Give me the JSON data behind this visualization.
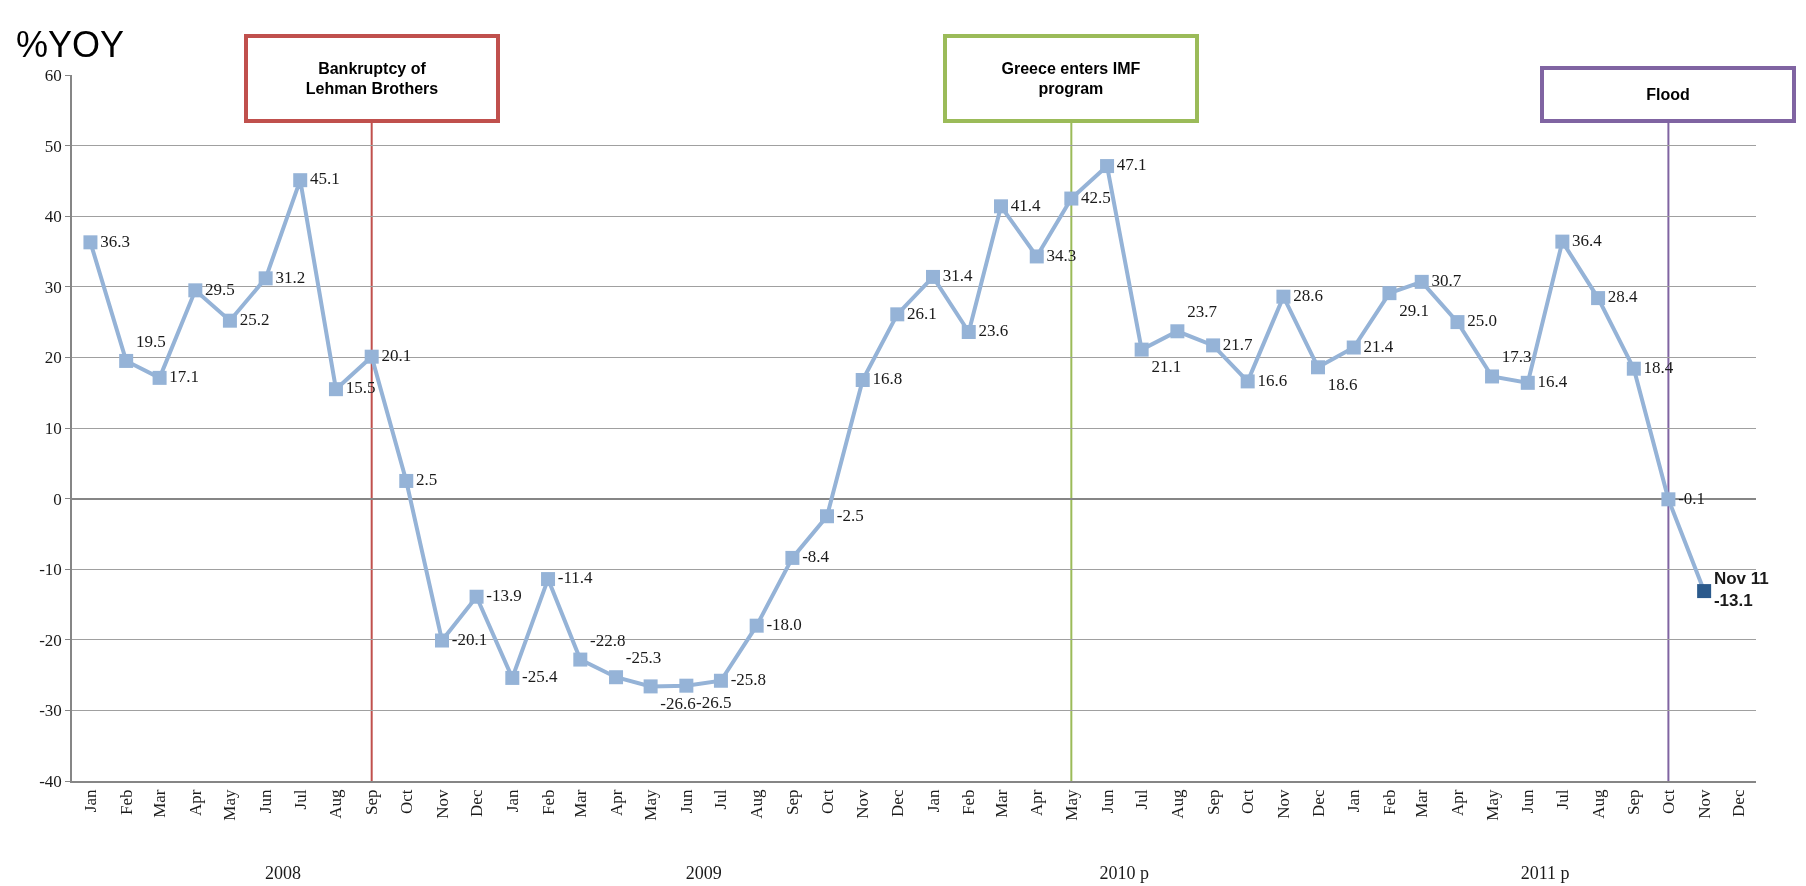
{
  "chart_data": {
    "type": "line",
    "ylabel": "%YOY",
    "x": [
      "2008-01",
      "2008-02",
      "2008-03",
      "2008-04",
      "2008-05",
      "2008-06",
      "2008-07",
      "2008-08",
      "2008-09",
      "2008-10",
      "2008-11",
      "2008-12",
      "2009-01",
      "2009-02",
      "2009-03",
      "2009-04",
      "2009-05",
      "2009-06",
      "2009-07",
      "2009-08",
      "2009-09",
      "2009-10",
      "2009-11",
      "2009-12",
      "2010-01",
      "2010-02",
      "2010-03",
      "2010-04",
      "2010-05",
      "2010-06",
      "2010-07",
      "2010-08",
      "2010-09",
      "2010-10",
      "2010-11",
      "2010-12",
      "2011-01",
      "2011-02",
      "2011-03",
      "2011-04",
      "2011-05",
      "2011-06",
      "2011-07",
      "2011-08",
      "2011-09",
      "2011-10",
      "2011-11"
    ],
    "series": [
      {
        "color": "#95b3d7",
        "colors": [
          "#95b3d7",
          "#95b3d7",
          "#95b3d7",
          "#95b3d7",
          "#95b3d7",
          "#95b3d7",
          "#95b3d7",
          "#95b3d7",
          "#95b3d7",
          "#95b3d7",
          "#95b3d7",
          "#95b3d7",
          "#95b3d7",
          "#95b3d7",
          "#95b3d7",
          "#95b3d7",
          "#95b3d7",
          "#95b3d7",
          "#95b3d7",
          "#95b3d7",
          "#95b3d7",
          "#95b3d7",
          "#95b3d7",
          "#95b3d7",
          "#95b3d7",
          "#95b3d7",
          "#95b3d7",
          "#95b3d7",
          "#95b3d7",
          "#95b3d7",
          "#95b3d7",
          "#95b3d7",
          "#95b3d7",
          "#95b3d7",
          "#95b3d7",
          "#95b3d7",
          "#95b3d7",
          "#95b3d7",
          "#95b3d7",
          "#95b3d7",
          "#95b3d7",
          "#95b3d7",
          "#95b3d7",
          "#95b3d7",
          "#95b3d7",
          "#95b3d7",
          "#2b5a8c"
        ],
        "values": [
          36.3,
          19.5,
          17.1,
          29.5,
          25.2,
          31.2,
          45.1,
          15.5,
          20.1,
          2.5,
          -20.1,
          -13.9,
          -25.4,
          -11.4,
          -22.8,
          -25.3,
          -26.6,
          -26.5,
          -25.8,
          -18.0,
          -8.4,
          -2.5,
          16.8,
          26.1,
          31.4,
          23.6,
          41.4,
          34.3,
          42.5,
          47.1,
          21.1,
          23.7,
          21.7,
          16.6,
          28.6,
          18.6,
          21.4,
          29.1,
          30.7,
          25.0,
          17.3,
          16.4,
          36.4,
          28.4,
          18.4,
          -0.1,
          -13.1
        ],
        "value_labels": [
          "36.3",
          "19.5",
          "17.1",
          "29.5",
          "25.2",
          "31.2",
          "45.1",
          "15.5",
          "20.1",
          "2.5",
          "-20.1",
          "-13.9",
          "-25.4",
          "-11.4",
          "-22.8",
          "-25.3",
          "-26.6",
          "-26.5",
          "-25.8",
          "-18.0",
          "-8.4",
          "-2.5",
          "16.8",
          "26.1",
          "31.4",
          "23.6",
          "41.4",
          "34.3",
          "42.5",
          "47.1",
          "21.1",
          "23.7",
          "21.7",
          "16.6",
          "28.6",
          "18.6",
          "21.4",
          "29.1",
          "30.7",
          "25.0",
          "17.3",
          "16.4",
          "36.4",
          "28.4",
          "18.4",
          "-0.1",
          "Nov 11\n-13.1"
        ]
      }
    ],
    "marker": "square",
    "line_style": "solid",
    "grid": "y",
    "ylim": [
      -40,
      60
    ],
    "yticks": [
      -40,
      -30,
      -20,
      -10,
      0,
      10,
      20,
      30,
      40,
      50,
      60
    ],
    "xlim": [
      "2007-12-16",
      "2011-12-16"
    ],
    "xticks": [
      {
        "value": "2008-01",
        "label": "Jan"
      },
      {
        "value": "2008-02",
        "label": "Feb"
      },
      {
        "value": "2008-03",
        "label": "Mar"
      },
      {
        "value": "2008-04",
        "label": "Apr"
      },
      {
        "value": "2008-05",
        "label": "May"
      },
      {
        "value": "2008-06",
        "label": "Jun"
      },
      {
        "value": "2008-07",
        "label": "Jul"
      },
      {
        "value": "2008-08",
        "label": "Aug"
      },
      {
        "value": "2008-09",
        "label": "Sep"
      },
      {
        "value": "2008-10",
        "label": "Oct"
      },
      {
        "value": "2008-11",
        "label": "Nov"
      },
      {
        "value": "2008-12",
        "label": "Dec"
      },
      {
        "value": "2009-01",
        "label": "Jan"
      },
      {
        "value": "2009-02",
        "label": "Feb"
      },
      {
        "value": "2009-03",
        "label": "Mar"
      },
      {
        "value": "2009-04",
        "label": "Apr"
      },
      {
        "value": "2009-05",
        "label": "May"
      },
      {
        "value": "2009-06",
        "label": "Jun"
      },
      {
        "value": "2009-07",
        "label": "Jul"
      },
      {
        "value": "2009-08",
        "label": "Aug"
      },
      {
        "value": "2009-09",
        "label": "Sep"
      },
      {
        "value": "2009-10",
        "label": "Oct"
      },
      {
        "value": "2009-11",
        "label": "Nov"
      },
      {
        "value": "2009-12",
        "label": "Dec"
      },
      {
        "value": "2010-01",
        "label": "Jan"
      },
      {
        "value": "2010-02",
        "label": "Feb"
      },
      {
        "value": "2010-03",
        "label": "Mar"
      },
      {
        "value": "2010-04",
        "label": "Apr"
      },
      {
        "value": "2010-05",
        "label": "May"
      },
      {
        "value": "2010-06",
        "label": "Jun"
      },
      {
        "value": "2010-07",
        "label": "Jul"
      },
      {
        "value": "2010-08",
        "label": "Aug"
      },
      {
        "value": "2010-09",
        "label": "Sep"
      },
      {
        "value": "2010-10",
        "label": "Oct"
      },
      {
        "value": "2010-11",
        "label": "Nov"
      },
      {
        "value": "2010-12",
        "label": "Dec"
      },
      {
        "value": "2011-01",
        "label": "Jan"
      },
      {
        "value": "2011-02",
        "label": "Feb"
      },
      {
        "value": "2011-03",
        "label": "Mar"
      },
      {
        "value": "2011-04",
        "label": "Apr"
      },
      {
        "value": "2011-05",
        "label": "May"
      },
      {
        "value": "2011-06",
        "label": "Jun"
      },
      {
        "value": "2011-07",
        "label": "Jul"
      },
      {
        "value": "2011-08",
        "label": "Aug"
      },
      {
        "value": "2011-09",
        "label": "Sep"
      },
      {
        "value": "2011-10",
        "label": "Oct"
      },
      {
        "value": "2011-11",
        "label": "Nov"
      },
      {
        "value": "2011-12",
        "label": "Dec"
      }
    ],
    "x2lim": [
      "2007-12-16",
      "2011-12-16"
    ],
    "x2ticks": [
      {
        "value": "2008-06-16",
        "label": "2008"
      },
      {
        "value": "2009-06-16",
        "label": "2009"
      },
      {
        "value": "2010-06-16",
        "label": "2010 p"
      },
      {
        "value": "2011-06-16",
        "label": "2011 p"
      }
    ],
    "ref_lines": [
      {
        "axis": "x",
        "value": "2008-09",
        "label": "Bankruptcy of Lehman Brothers",
        "color": "#c0504d"
      },
      {
        "axis": "x",
        "value": "2010-05",
        "label": "Greece enters IMF program",
        "color": "#9bbb59"
      },
      {
        "axis": "x",
        "value": "2011-10",
        "label": "Flood",
        "color": "#8064a2"
      }
    ]
  }
}
